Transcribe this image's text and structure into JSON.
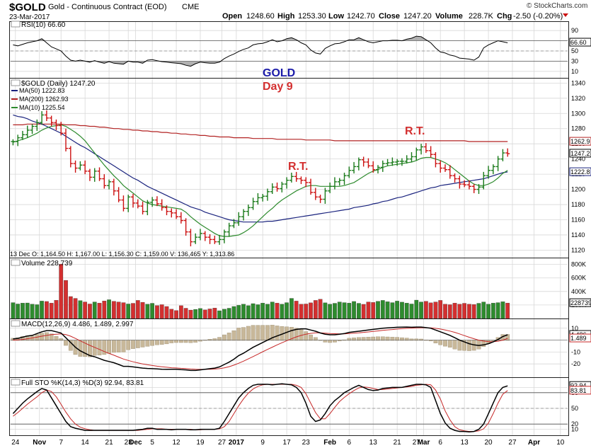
{
  "header": {
    "symbol": "$GOLD",
    "name": "Gold - Continuous Contract (EOD)",
    "exchange": "CME",
    "date": "23-Mar-2017",
    "open_label": "Open",
    "open": "1248.60",
    "high_label": "High",
    "high": "1253.30",
    "low_label": "Low",
    "low": "1242.70",
    "close_label": "Close",
    "close": "1247.20",
    "volume_label": "Volume",
    "volume": "228.7K",
    "chg_label": "Chg",
    "chg": "-2.50 (-0.20%)",
    "brand": "© StockCharts.com"
  },
  "colors": {
    "up": "#1a7a1a",
    "down": "#cc1111",
    "ma50": "#1a237e",
    "ma200": "#b22222",
    "ma10": "#2e8b2e",
    "vol_up": "#2e8b2e",
    "vol_down": "#d32f2f",
    "rsi_fill": "#9e9e9e",
    "grid": "#d8d8d8",
    "annot_red": "#d32f2f",
    "annot_blue": "#1a1aa8"
  },
  "chart_data": {
    "type": "ohlc",
    "x_tick_labels": [
      {
        "label": "24",
        "x": 0.5
      },
      {
        "label": "Nov",
        "x": 5.5
      },
      {
        "label": "7",
        "x": 10
      },
      {
        "label": "14",
        "x": 15
      },
      {
        "label": "21",
        "x": 20
      },
      {
        "label": "28",
        "x": 24
      },
      {
        "label": "Dec",
        "x": 25.5
      },
      {
        "label": "5",
        "x": 29
      },
      {
        "label": "12",
        "x": 34
      },
      {
        "label": "19",
        "x": 39
      },
      {
        "label": "27",
        "x": 43.5
      },
      {
        "label": "2017",
        "x": 46.5
      },
      {
        "label": "9",
        "x": 52
      },
      {
        "label": "17",
        "x": 57
      },
      {
        "label": "23",
        "x": 61
      },
      {
        "label": "Feb",
        "x": 66
      },
      {
        "label": "6",
        "x": 70
      },
      {
        "label": "13",
        "x": 75
      },
      {
        "label": "21",
        "x": 80
      },
      {
        "label": "27",
        "x": 84
      },
      {
        "label": "Mar",
        "x": 85.5
      },
      {
        "label": "6",
        "x": 89
      },
      {
        "label": "13",
        "x": 94
      },
      {
        "label": "20",
        "x": 99
      },
      {
        "label": "27",
        "x": 104
      },
      {
        "label": "Apr",
        "x": 108.5
      },
      {
        "label": "10",
        "x": 114
      }
    ],
    "price_panel": {
      "title": "$GOLD (Daily) 1247.20",
      "ylim": [
        1112,
        1345
      ],
      "y_ticks": [
        1120,
        1140,
        1160,
        1180,
        1200,
        1220,
        1240,
        1260,
        1280,
        1300,
        1320,
        1340
      ],
      "legend": [
        {
          "label": "MA(50) 1222.83",
          "key": "ma50"
        },
        {
          "label": "MA(200) 1262.93",
          "key": "ma200"
        },
        {
          "label": "MA(10) 1225.54",
          "key": "ma10"
        }
      ],
      "close_marker": "1247.2",
      "ma200_marker": "1262.9",
      "ma50_marker": "1222.8",
      "annotations": [
        {
          "text": "GOLD",
          "x": 56,
          "y": 1333,
          "color_key": "annot_blue"
        },
        {
          "text": "Day 9",
          "x": 55.5,
          "y": 1317,
          "color_key": "annot_red"
        },
        {
          "text": "R.T.",
          "x": 58,
          "y": 1228,
          "color_key": "annot_red"
        },
        {
          "text": "R.T.",
          "x": 82,
          "y": 1278,
          "color_key": "annot_red"
        }
      ],
      "footer": "13 Dec O: 1,164.50   H: 1,167.00   L: 1,156.30   C: 1,159.00   V: 136,465   Y: 1,313.86",
      "close": [
        1263,
        1268,
        1272,
        1278,
        1283,
        1288,
        1298,
        1294,
        1288,
        1284,
        1274,
        1254,
        1234,
        1228,
        1232,
        1224,
        1216,
        1224,
        1214,
        1205,
        1210,
        1198,
        1186,
        1175,
        1190,
        1182,
        1178,
        1171,
        1183,
        1186,
        1181,
        1176,
        1171,
        1169,
        1164,
        1159,
        1144,
        1131,
        1137,
        1142,
        1137,
        1134,
        1131,
        1134,
        1144,
        1152,
        1156,
        1164,
        1171,
        1176,
        1184,
        1189,
        1191,
        1197,
        1203,
        1201,
        1207,
        1212,
        1217,
        1214,
        1212,
        1209,
        1196,
        1190,
        1187,
        1198,
        1204,
        1210,
        1212,
        1218,
        1225,
        1230,
        1239,
        1236,
        1231,
        1226,
        1229,
        1234,
        1235,
        1236,
        1237,
        1237,
        1240,
        1243,
        1252,
        1256,
        1251,
        1246,
        1234,
        1228,
        1226,
        1218,
        1214,
        1207,
        1206,
        1204,
        1200,
        1203,
        1218,
        1225,
        1230,
        1240,
        1248,
        1247
      ],
      "ma50": [
        1298,
        1296,
        1295,
        1293,
        1290,
        1288,
        1286,
        1283,
        1280,
        1277,
        1274,
        1270,
        1266,
        1262,
        1258,
        1255,
        1251,
        1247,
        1243,
        1239,
        1235,
        1231,
        1227,
        1223,
        1219,
        1215,
        1212,
        1208,
        1204,
        1201,
        1198,
        1195,
        1192,
        1189,
        1186,
        1183,
        1180,
        1177,
        1175,
        1173,
        1170,
        1168,
        1166,
        1164,
        1162,
        1160,
        1159,
        1158,
        1157,
        1157,
        1157,
        1157,
        1157,
        1158,
        1158,
        1159,
        1160,
        1161,
        1162,
        1163,
        1164,
        1165,
        1166,
        1167,
        1168,
        1169,
        1170,
        1171,
        1172,
        1173,
        1174,
        1176,
        1177,
        1178,
        1179,
        1181,
        1182,
        1184,
        1185,
        1187,
        1189,
        1190,
        1192,
        1194,
        1196,
        1198,
        1200,
        1202,
        1203,
        1205,
        1206,
        1207,
        1208,
        1209,
        1210,
        1211,
        1212,
        1213,
        1214,
        1216,
        1218,
        1220,
        1222,
        1223
      ],
      "ma200": [
        1285,
        1285,
        1285,
        1286,
        1286,
        1286,
        1286,
        1286,
        1286,
        1286,
        1286,
        1285,
        1285,
        1285,
        1284,
        1284,
        1283,
        1283,
        1282,
        1282,
        1281,
        1280,
        1280,
        1279,
        1279,
        1278,
        1278,
        1277,
        1277,
        1276,
        1276,
        1275,
        1275,
        1274,
        1274,
        1273,
        1273,
        1272,
        1272,
        1271,
        1271,
        1270,
        1270,
        1269,
        1269,
        1269,
        1268,
        1268,
        1268,
        1268,
        1267,
        1267,
        1267,
        1267,
        1267,
        1266,
        1266,
        1266,
        1266,
        1266,
        1266,
        1265,
        1265,
        1265,
        1265,
        1265,
        1265,
        1264,
        1264,
        1264,
        1264,
        1264,
        1264,
        1264,
        1264,
        1264,
        1264,
        1264,
        1264,
        1264,
        1264,
        1264,
        1264,
        1264,
        1264,
        1264,
        1264,
        1264,
        1264,
        1264,
        1264,
        1264,
        1264,
        1264,
        1264,
        1263,
        1263,
        1263,
        1263,
        1263,
        1263,
        1263,
        1263,
        1263
      ],
      "ma10": [
        1262,
        1264,
        1266,
        1268,
        1271,
        1274,
        1278,
        1281,
        1283,
        1284,
        1285,
        1283,
        1279,
        1275,
        1270,
        1264,
        1256,
        1248,
        1240,
        1232,
        1225,
        1218,
        1212,
        1205,
        1200,
        1195,
        1190,
        1185,
        1182,
        1180,
        1179,
        1178,
        1177,
        1176,
        1175,
        1174,
        1170,
        1164,
        1159,
        1154,
        1150,
        1146,
        1142,
        1139,
        1138,
        1138,
        1139,
        1140,
        1143,
        1147,
        1152,
        1158,
        1164,
        1170,
        1175,
        1181,
        1186,
        1190,
        1194,
        1198,
        1201,
        1204,
        1205,
        1205,
        1204,
        1204,
        1204,
        1204,
        1204,
        1205,
        1207,
        1209,
        1213,
        1217,
        1221,
        1224,
        1226,
        1229,
        1231,
        1232,
        1233,
        1234,
        1235,
        1236,
        1238,
        1241,
        1242,
        1242,
        1240,
        1238,
        1235,
        1231,
        1226,
        1221,
        1216,
        1211,
        1207,
        1205,
        1205,
        1207,
        1210,
        1215,
        1221,
        1225
      ]
    },
    "rsi_panel": {
      "title": "RSI(10) 66.60",
      "ylim": [
        0,
        100
      ],
      "y_ticks": [
        10,
        30,
        50,
        70,
        90
      ],
      "marker": "66.60",
      "values": [
        62,
        60,
        63,
        66,
        68,
        70,
        74,
        66,
        58,
        54,
        50,
        40,
        32,
        30,
        32,
        30,
        28,
        31,
        28,
        26,
        29,
        26,
        25,
        24,
        30,
        28,
        28,
        26,
        32,
        33,
        31,
        29,
        28,
        27,
        26,
        25,
        22,
        20,
        25,
        28,
        27,
        26,
        26,
        28,
        35,
        40,
        44,
        49,
        53,
        56,
        62,
        64,
        65,
        68,
        72,
        68,
        70,
        74,
        76,
        72,
        66,
        62,
        52,
        46,
        44,
        55,
        60,
        64,
        65,
        68,
        72,
        72,
        76,
        72,
        68,
        66,
        68,
        70,
        70,
        71,
        71,
        70,
        73,
        75,
        79,
        78,
        72,
        66,
        56,
        48,
        46,
        42,
        40,
        36,
        35,
        34,
        32,
        38,
        56,
        62,
        66,
        70,
        68,
        66
      ]
    },
    "volume_panel": {
      "title": "Volume 228,739",
      "y_ticks": [
        "200K",
        "400K",
        "600K",
        "800K"
      ],
      "marker": "228739",
      "values": [
        235,
        215,
        228,
        230,
        212,
        205,
        258,
        252,
        228,
        270,
        805,
        565,
        325,
        298,
        265,
        245,
        215,
        245,
        228,
        260,
        278,
        255,
        245,
        235,
        215,
        225,
        268,
        240,
        212,
        225,
        192,
        205,
        178,
        138,
        118,
        190,
        152,
        125,
        135,
        148,
        128,
        142,
        155,
        115,
        138,
        152,
        178,
        195,
        212,
        190,
        220,
        205,
        228,
        212,
        245,
        228,
        212,
        235,
        298,
        258,
        212,
        215,
        232,
        268,
        285,
        232,
        212,
        225,
        245,
        235,
        228,
        252,
        225,
        210,
        245,
        238,
        255,
        268,
        248,
        235,
        258,
        242,
        228,
        215,
        272,
        245,
        255,
        232,
        245,
        268,
        212,
        205,
        228,
        212,
        225,
        212,
        208,
        225,
        245,
        212,
        228,
        235,
        248,
        229
      ]
    },
    "macd_panel": {
      "title": "MACD(12,26,9) 4.486, 1.489, 2.997",
      "ylim": [
        -30,
        17
      ],
      "y_ticks": [
        -20,
        -10,
        0,
        10
      ],
      "marker_macd": "4.486",
      "marker_signal": "1.489",
      "macd": [
        1,
        1.5,
        2.5,
        3.5,
        4,
        5.5,
        7,
        8,
        8,
        7,
        6,
        2,
        -2,
        -6,
        -9,
        -11,
        -13,
        -14,
        -15.5,
        -17,
        -18,
        -19,
        -20.5,
        -22,
        -22,
        -22.5,
        -23,
        -23.5,
        -23.8,
        -24,
        -24.2,
        -24.5,
        -24.6,
        -24.5,
        -24.5,
        -24.8,
        -25,
        -25.5,
        -25.5,
        -25,
        -24.5,
        -24,
        -23.5,
        -22.5,
        -20.5,
        -18.5,
        -16,
        -13,
        -11,
        -8.5,
        -6,
        -4,
        -2,
        0,
        2,
        3.5,
        5,
        6.5,
        8,
        9,
        9.5,
        9.5,
        8.5,
        7.5,
        6,
        5,
        4.5,
        4.5,
        5,
        5.5,
        6.5,
        7,
        7.5,
        8,
        8.5,
        9,
        9.5,
        10,
        10.3,
        10.5,
        10.8,
        10.9,
        11,
        10.8,
        11,
        11,
        10.5,
        10,
        8.5,
        7,
        5.5,
        4,
        2,
        0,
        -1.5,
        -3,
        -4,
        -4.5,
        -4,
        -3,
        -1.5,
        0.5,
        3,
        4.5
      ],
      "signal": [
        0,
        0.2,
        0.6,
        1.2,
        1.8,
        2.5,
        3.3,
        4,
        4.7,
        5,
        5.2,
        4.6,
        3.3,
        1.4,
        -0.6,
        -2.5,
        -4.4,
        -6.1,
        -7.8,
        -9.6,
        -11.2,
        -12.7,
        -14.3,
        -15.9,
        -17.1,
        -18.2,
        -19.1,
        -20,
        -20.7,
        -21.3,
        -21.9,
        -22.4,
        -22.8,
        -23.2,
        -23.4,
        -23.7,
        -23.9,
        -24.3,
        -24.5,
        -24.6,
        -24.6,
        -24.5,
        -24.3,
        -24,
        -23.3,
        -22.3,
        -21,
        -19.4,
        -17.7,
        -15.8,
        -13.8,
        -11.8,
        -9.8,
        -7.8,
        -5.9,
        -4,
        -2.2,
        -0.5,
        1.2,
        2.7,
        4,
        5,
        5.7,
        6.1,
        6.1,
        5.9,
        5.6,
        5.4,
        5.3,
        5.3,
        5.5,
        5.8,
        6.1,
        6.5,
        6.9,
        7.3,
        7.7,
        8.2,
        8.6,
        8.9,
        9.3,
        9.6,
        9.9,
        10.1,
        10.3,
        10.4,
        10.4,
        10.3,
        9.9,
        9.3,
        8.5,
        7.6,
        6.5,
        5.2,
        3.8,
        2.4,
        1.2,
        0,
        -0.8,
        -1.3,
        -1.3,
        -0.9,
        0,
        1.5
      ]
    },
    "sto_panel": {
      "title": "Full STO %K(14,3) %D(3) 92.94, 83.81",
      "ylim": [
        0,
        100
      ],
      "y_ticks": [
        10,
        20,
        50,
        80,
        90
      ],
      "marker_k": "92.94",
      "marker_d": "83.81",
      "k": [
        40,
        50,
        60,
        68,
        75,
        82,
        88,
        85,
        70,
        55,
        40,
        25,
        15,
        12,
        10,
        8,
        8,
        8,
        8,
        8,
        8,
        8,
        8,
        8,
        8,
        8,
        9,
        10,
        12,
        12,
        10,
        10,
        10,
        9,
        10,
        10,
        10,
        9,
        9,
        10,
        10,
        10,
        10,
        12,
        25,
        40,
        55,
        70,
        80,
        88,
        94,
        96,
        96,
        96,
        95,
        96,
        97,
        96,
        95,
        90,
        80,
        60,
        35,
        25,
        28,
        40,
        55,
        65,
        72,
        80,
        85,
        90,
        94,
        90,
        86,
        84,
        85,
        88,
        89,
        90,
        90,
        90,
        92,
        94,
        96,
        96,
        95,
        90,
        65,
        40,
        22,
        12,
        8,
        6,
        6,
        5,
        6,
        10,
        20,
        40,
        60,
        80,
        90,
        93
      ],
      "d": [
        35,
        42,
        50,
        58,
        65,
        72,
        80,
        85,
        82,
        72,
        58,
        43,
        30,
        20,
        14,
        11,
        9,
        8,
        8,
        8,
        8,
        8,
        8,
        8,
        8,
        8,
        8,
        9,
        10,
        11,
        11,
        11,
        10,
        10,
        10,
        10,
        10,
        10,
        9,
        9,
        10,
        10,
        10,
        11,
        15,
        25,
        40,
        55,
        68,
        79,
        87,
        92,
        95,
        96,
        96,
        96,
        96,
        96,
        96,
        94,
        90,
        78,
        60,
        42,
        30,
        30,
        40,
        52,
        63,
        71,
        78,
        84,
        89,
        91,
        90,
        88,
        86,
        86,
        87,
        88,
        89,
        90,
        91,
        92,
        94,
        95,
        96,
        95,
        85,
        68,
        45,
        28,
        15,
        9,
        7,
        6,
        6,
        7,
        11,
        22,
        40,
        60,
        77,
        84
      ]
    }
  }
}
